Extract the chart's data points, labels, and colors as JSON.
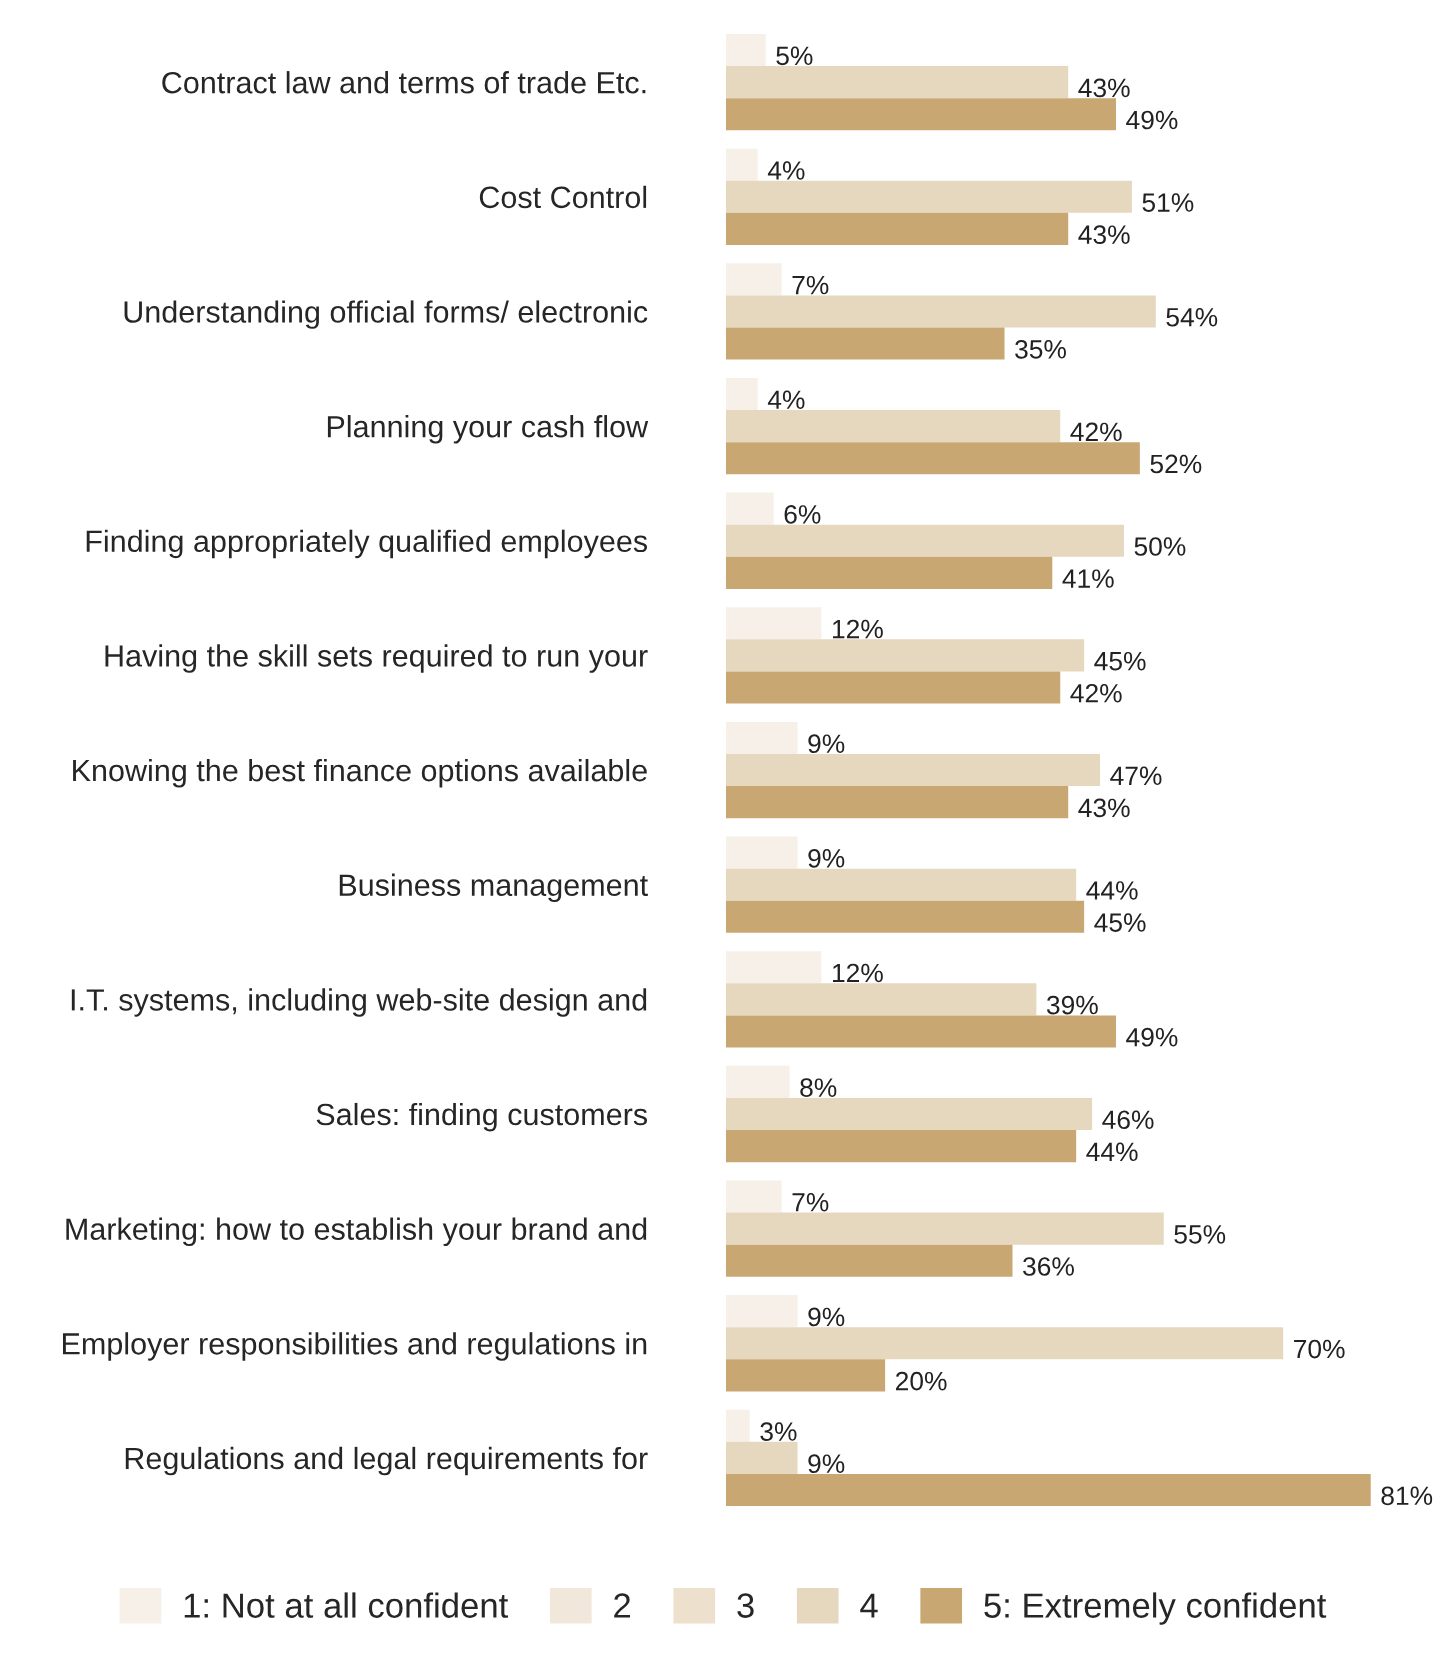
{
  "chart_data": {
    "type": "bar",
    "orientation": "horizontal",
    "legend": "bottom",
    "grid": false,
    "categories": [
      "Contract law and terms of trade Etc.",
      "Cost Control",
      "Understanding official forms/ electronic",
      "Planning your cash flow",
      "Finding appropriately qualified employees",
      "Having the skill sets required to run your",
      "Knowing the best finance options available",
      "Business management",
      "I.T. systems, including web-site design and",
      "Sales: finding customers",
      "Marketing: how to establish your brand and",
      "Employer responsibilities and regulations in",
      "Regulations and legal requirements for"
    ],
    "series": [
      {
        "name": "1: Not at all confident",
        "color": "#f6f0e8",
        "values": [
          5,
          4,
          7,
          4,
          6,
          12,
          9,
          9,
          12,
          8,
          7,
          9,
          3
        ],
        "value_labels": [
          "5%",
          "4%",
          "7%",
          "4%",
          "6%",
          "12%",
          "9%",
          "9%",
          "12%",
          "8%",
          "7%",
          "9%",
          "3%"
        ]
      },
      {
        "name": "2",
        "color": "#f1e7da",
        "values": [
          null,
          null,
          null,
          null,
          null,
          null,
          null,
          null,
          null,
          null,
          null,
          null,
          null
        ]
      },
      {
        "name": "3",
        "color": "#ede0cc",
        "values": [
          null,
          null,
          null,
          null,
          null,
          null,
          null,
          null,
          null,
          null,
          null,
          null,
          null
        ]
      },
      {
        "name": "4",
        "color": "#e6d7bf",
        "values": [
          43,
          51,
          54,
          42,
          50,
          45,
          47,
          44,
          39,
          46,
          55,
          70,
          9
        ],
        "value_labels": [
          "43%",
          "51%",
          "54%",
          "42%",
          "50%",
          "45%",
          "47%",
          "44%",
          "39%",
          "46%",
          "55%",
          "70%",
          "9%"
        ]
      },
      {
        "name": "5: Extremely confident",
        "color": "#c9a773",
        "values": [
          49,
          43,
          35,
          52,
          41,
          42,
          43,
          45,
          49,
          44,
          36,
          20,
          81
        ],
        "value_labels": [
          "49%",
          "43%",
          "35%",
          "52%",
          "41%",
          "42%",
          "43%",
          "45%",
          "49%",
          "44%",
          "36%",
          "20%",
          "81%"
        ]
      }
    ]
  }
}
